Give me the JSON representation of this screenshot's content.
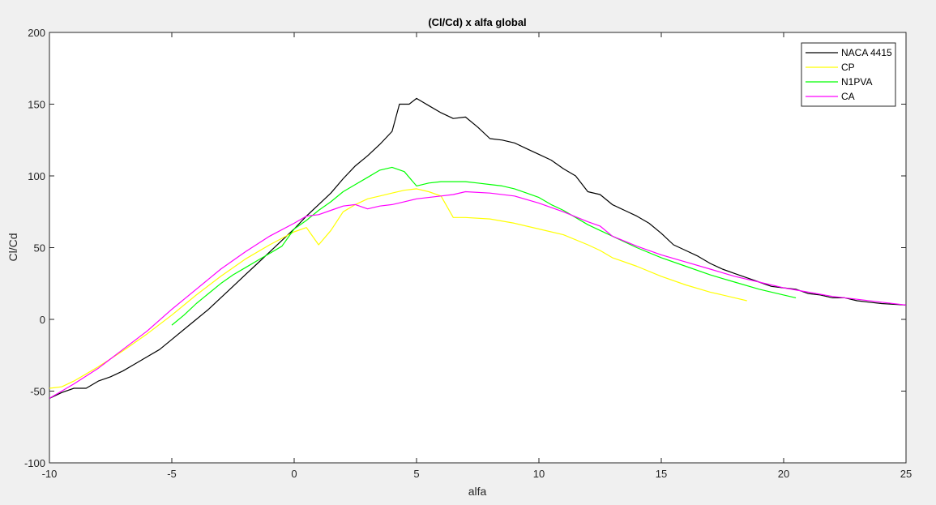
{
  "chart_data": {
    "type": "line",
    "title": "(Cl/Cd) x alfa global",
    "xlabel": "alfa",
    "ylabel": "Cl/Cd",
    "xlim": [
      -10,
      25
    ],
    "ylim": [
      -100,
      200
    ],
    "xticks": [
      -10,
      -5,
      0,
      5,
      10,
      15,
      20,
      25
    ],
    "yticks": [
      -100,
      -50,
      0,
      50,
      100,
      150,
      200
    ],
    "grid": false,
    "legend_position": "top-right",
    "series": [
      {
        "name": "NACA 4415",
        "color": "#000000",
        "points": [
          [
            -10,
            -55
          ],
          [
            -9.5,
            -51
          ],
          [
            -9,
            -48
          ],
          [
            -8.5,
            -48
          ],
          [
            -8,
            -43
          ],
          [
            -7.5,
            -40
          ],
          [
            -7,
            -36
          ],
          [
            -6.5,
            -31
          ],
          [
            -6,
            -26
          ],
          [
            -5.5,
            -21
          ],
          [
            -5,
            -14
          ],
          [
            -4.5,
            -7
          ],
          [
            -4,
            0
          ],
          [
            -3.5,
            7
          ],
          [
            -3,
            15
          ],
          [
            -2.5,
            23
          ],
          [
            -2,
            31
          ],
          [
            -1.5,
            39
          ],
          [
            -1,
            47
          ],
          [
            -0.5,
            55
          ],
          [
            0,
            63
          ],
          [
            0.5,
            72
          ],
          [
            1,
            80
          ],
          [
            1.5,
            88
          ],
          [
            2,
            98
          ],
          [
            2.5,
            107
          ],
          [
            3,
            114
          ],
          [
            3.5,
            122
          ],
          [
            4,
            131
          ],
          [
            4.3,
            150
          ],
          [
            4.7,
            150
          ],
          [
            5,
            154
          ],
          [
            5.5,
            149
          ],
          [
            6,
            144
          ],
          [
            6.5,
            140
          ],
          [
            7,
            141
          ],
          [
            7.5,
            134
          ],
          [
            8,
            126
          ],
          [
            8.5,
            125
          ],
          [
            9,
            123
          ],
          [
            9.5,
            119
          ],
          [
            10,
            115
          ],
          [
            10.5,
            111
          ],
          [
            11,
            105
          ],
          [
            11.5,
            100
          ],
          [
            12,
            89
          ],
          [
            12.5,
            87
          ],
          [
            13,
            80
          ],
          [
            13.5,
            76
          ],
          [
            14,
            72
          ],
          [
            14.5,
            67
          ],
          [
            15,
            60
          ],
          [
            15.5,
            52
          ],
          [
            16,
            48
          ],
          [
            16.5,
            44
          ],
          [
            17,
            39
          ],
          [
            17.5,
            35
          ],
          [
            18,
            32
          ],
          [
            18.5,
            29
          ],
          [
            19,
            26
          ],
          [
            19.5,
            23
          ],
          [
            20,
            22
          ],
          [
            20.5,
            21
          ],
          [
            21,
            18
          ],
          [
            21.5,
            17
          ],
          [
            22,
            15
          ],
          [
            22.5,
            15
          ],
          [
            23,
            13
          ],
          [
            23.5,
            12
          ],
          [
            24,
            11
          ],
          [
            25,
            10
          ]
        ]
      },
      {
        "name": "CP",
        "color": "#ffff00",
        "points": [
          [
            -10,
            -48
          ],
          [
            -9.5,
            -47
          ],
          [
            -9,
            -43
          ],
          [
            -8.5,
            -38
          ],
          [
            -8,
            -33
          ],
          [
            -7,
            -22
          ],
          [
            -6,
            -10
          ],
          [
            -5,
            3
          ],
          [
            -4,
            17
          ],
          [
            -3,
            30
          ],
          [
            -2,
            42
          ],
          [
            -1,
            52
          ],
          [
            0,
            61
          ],
          [
            0.5,
            64
          ],
          [
            1,
            52
          ],
          [
            1.5,
            62
          ],
          [
            2,
            75
          ],
          [
            2.5,
            80
          ],
          [
            3,
            84
          ],
          [
            3.5,
            86
          ],
          [
            4,
            88
          ],
          [
            4.5,
            90
          ],
          [
            5,
            91
          ],
          [
            5.5,
            89
          ],
          [
            6,
            86
          ],
          [
            6.5,
            71
          ],
          [
            7,
            71
          ],
          [
            8,
            70
          ],
          [
            9,
            67
          ],
          [
            10,
            63
          ],
          [
            11,
            59
          ],
          [
            12,
            52
          ],
          [
            12.5,
            48
          ],
          [
            13,
            43
          ],
          [
            14,
            37
          ],
          [
            15,
            30
          ],
          [
            16,
            24
          ],
          [
            17,
            19
          ],
          [
            18,
            15
          ],
          [
            18.5,
            13
          ]
        ]
      },
      {
        "name": "N1PVA",
        "color": "#00ff00",
        "points": [
          [
            -5,
            -4
          ],
          [
            -4.5,
            3
          ],
          [
            -4,
            11
          ],
          [
            -3.5,
            18
          ],
          [
            -3,
            25
          ],
          [
            -2.5,
            31
          ],
          [
            -2,
            36
          ],
          [
            -1.5,
            41
          ],
          [
            -1,
            46
          ],
          [
            -0.5,
            51
          ],
          [
            0,
            63
          ],
          [
            0.5,
            69
          ],
          [
            1,
            76
          ],
          [
            1.5,
            82
          ],
          [
            2,
            89
          ],
          [
            2.5,
            94
          ],
          [
            3,
            99
          ],
          [
            3.5,
            104
          ],
          [
            4,
            106
          ],
          [
            4.5,
            103
          ],
          [
            5,
            93
          ],
          [
            5.5,
            95
          ],
          [
            6,
            96
          ],
          [
            6.5,
            96
          ],
          [
            7,
            96
          ],
          [
            7.5,
            95
          ],
          [
            8,
            94
          ],
          [
            8.5,
            93
          ],
          [
            9,
            91
          ],
          [
            9.5,
            88
          ],
          [
            10,
            85
          ],
          [
            10.5,
            80
          ],
          [
            11,
            76
          ],
          [
            11.5,
            71
          ],
          [
            12,
            66
          ],
          [
            12.5,
            62
          ],
          [
            13,
            58
          ],
          [
            14,
            50
          ],
          [
            15,
            43
          ],
          [
            16,
            37
          ],
          [
            17,
            31
          ],
          [
            18,
            26
          ],
          [
            19,
            21
          ],
          [
            20,
            17
          ],
          [
            20.5,
            15
          ]
        ]
      },
      {
        "name": "CA",
        "color": "#ff00ff",
        "points": [
          [
            -10,
            -55
          ],
          [
            -9,
            -45
          ],
          [
            -8,
            -34
          ],
          [
            -7,
            -21
          ],
          [
            -6,
            -8
          ],
          [
            -5,
            7
          ],
          [
            -4,
            21
          ],
          [
            -3,
            35
          ],
          [
            -2,
            47
          ],
          [
            -1,
            58
          ],
          [
            0,
            67
          ],
          [
            0.5,
            72
          ],
          [
            1,
            73
          ],
          [
            1.5,
            76
          ],
          [
            2,
            79
          ],
          [
            2.5,
            80
          ],
          [
            3,
            77
          ],
          [
            3.5,
            79
          ],
          [
            4,
            80
          ],
          [
            4.5,
            82
          ],
          [
            5,
            84
          ],
          [
            6,
            86
          ],
          [
            6.5,
            87
          ],
          [
            7,
            89
          ],
          [
            8,
            88
          ],
          [
            9,
            86
          ],
          [
            10,
            81
          ],
          [
            11,
            75
          ],
          [
            12,
            68
          ],
          [
            12.5,
            65
          ],
          [
            13,
            58
          ],
          [
            14,
            51
          ],
          [
            15,
            45
          ],
          [
            16,
            40
          ],
          [
            17,
            35
          ],
          [
            18,
            30
          ],
          [
            19,
            26
          ],
          [
            20,
            22
          ],
          [
            21,
            19
          ],
          [
            22,
            16
          ],
          [
            23,
            14
          ],
          [
            24,
            12
          ],
          [
            25,
            10
          ]
        ]
      }
    ]
  }
}
